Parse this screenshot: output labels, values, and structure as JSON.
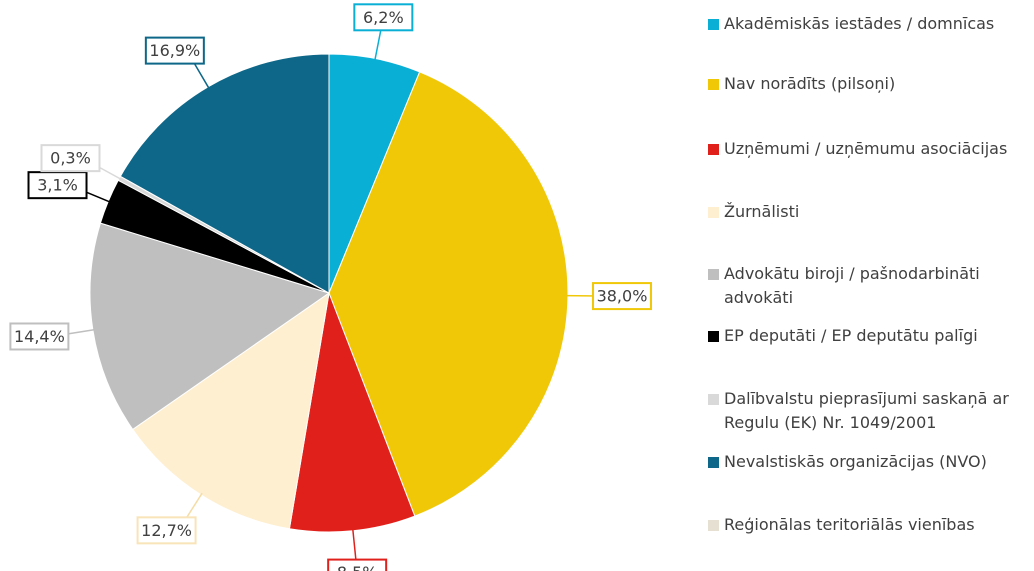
{
  "chart_data": {
    "type": "pie",
    "categories": [
      "Akadēmiskās iestādes / domnīcas",
      "Nav norādīts (pilsoņi)",
      "Uzņēmumi / uzņēmumu asociācijas",
      "Žurnālisti",
      "Advokātu biroji / pašnodarbināti advokāti",
      "EP deputāti / EP deputātu palīgi",
      "Dalībvalstu pieprasījumi saskaņā ar Regulu (EK) Nr. 1049/2001",
      "Nevalstiskās organizācijas (NVO)",
      "Reģionālas teritoriālās vienības"
    ],
    "values": [
      6.2,
      38.0,
      8.5,
      12.7,
      14.4,
      3.1,
      0.3,
      16.9,
      0
    ],
    "value_labels": [
      "6,2%",
      "38,0%",
      "8,5%",
      "12,7%",
      "14,4%",
      "3,1%",
      "0,3%",
      "16,9%",
      null
    ],
    "colors": [
      "#0aafd6",
      "#f0c808",
      "#e0201b",
      "#fdefd0",
      "#bfbfbf",
      "#000000",
      "#d9d9d9",
      "#0e6788",
      "#e6e0d2"
    ],
    "legend": "right"
  }
}
